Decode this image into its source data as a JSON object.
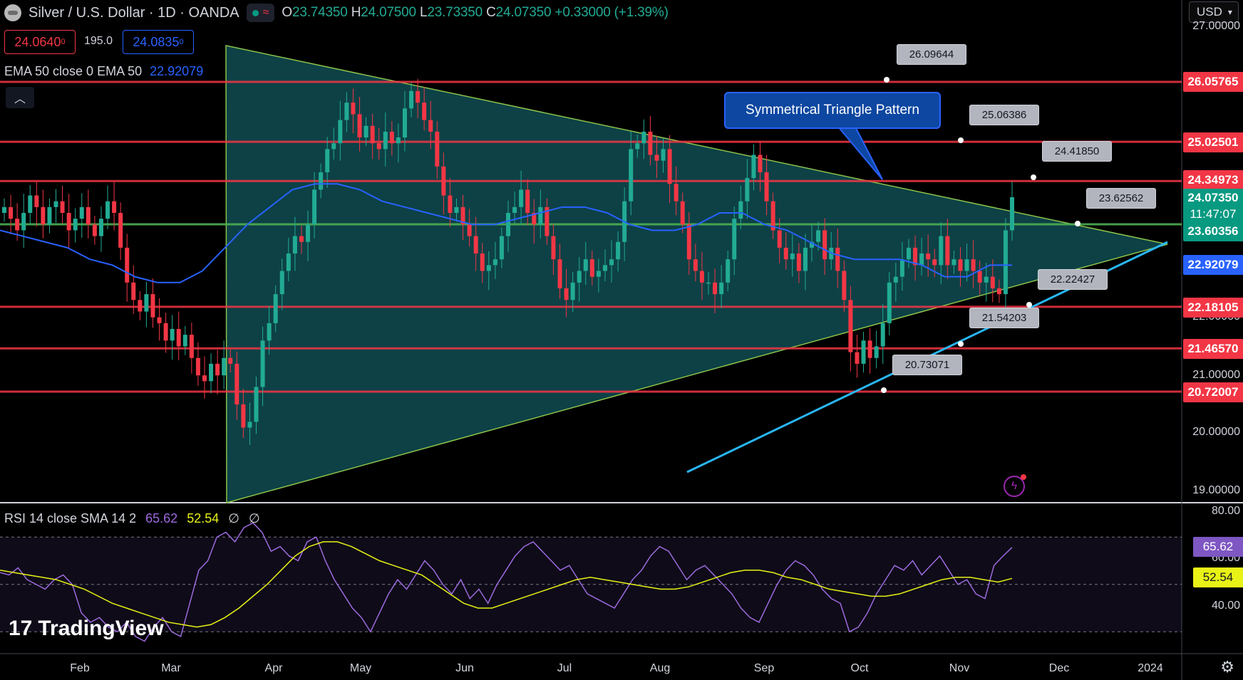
{
  "header": {
    "symbol_title": "Silver / U.S. Dollar · 1D · OANDA",
    "open_key": "O",
    "open": "23.74350",
    "high_key": "H",
    "high": "24.07500",
    "low_key": "L",
    "low": "23.73350",
    "close_key": "C",
    "close": "24.07350",
    "change": "+0.33000 (+1.39%)"
  },
  "trade": {
    "sell_price": "24.0640",
    "sell_sup": "0",
    "spread": "195.0",
    "buy_price": "24.0835",
    "buy_sup": "0"
  },
  "ema": {
    "label": "EMA 50 close 0 EMA 50",
    "value": "22.92079"
  },
  "currency": "USD",
  "price_axis": {
    "ticks": [
      "27.00000",
      "22.00000",
      "21.00000",
      "20.00000",
      "19.00000"
    ],
    "labels": [
      {
        "value": "26.05765",
        "price": 26.05765,
        "color": "#f23645"
      },
      {
        "value": "25.02501",
        "price": 25.02501,
        "color": "#f23645"
      },
      {
        "value": "24.34973",
        "price": 24.34973,
        "color": "#f23645"
      },
      {
        "value": "24.07350",
        "price": 24.0735,
        "color": "#089981"
      },
      {
        "value": "11:47:07",
        "price": 23.84,
        "color": "#089981"
      },
      {
        "value": "23.60356",
        "price": 23.60356,
        "color": "#089981"
      },
      {
        "value": "22.92079",
        "price": 22.92079,
        "color": "#2962ff"
      },
      {
        "value": "22.18105",
        "price": 22.18105,
        "color": "#f23645"
      },
      {
        "value": "21.46570",
        "price": 21.4657,
        "color": "#f23645"
      },
      {
        "value": "20.72007",
        "price": 20.72007,
        "color": "#f23645"
      }
    ]
  },
  "rsi_axis": {
    "ticks": [
      "80.00",
      "60.00",
      "40.00"
    ],
    "labels": [
      {
        "value": "65.62",
        "level": 65.62,
        "color": "#7e57c2",
        "text_color": "#fff"
      },
      {
        "value": "52.54",
        "level": 52.54,
        "color": "#e8f216",
        "text_color": "#131722"
      }
    ]
  },
  "time_axis": [
    "Feb",
    "Mar",
    "Apr",
    "May",
    "Jun",
    "Jul",
    "Aug",
    "Sep",
    "Oct",
    "Nov",
    "Dec",
    "2024"
  ],
  "callouts": [
    "26.09644",
    "25.06386",
    "24.41850",
    "23.62562",
    "22.22427",
    "21.54203",
    "20.73071"
  ],
  "pattern_label": "Symmetrical Triangle Pattern",
  "rsi": {
    "label": "RSI 14 close SMA 14 2",
    "rsi_value": "65.62",
    "sma_value": "52.54",
    "extra1": "∅",
    "extra2": "∅"
  },
  "logo": "TradingView",
  "colors": {
    "up": "#22ab94",
    "down": "#f23645",
    "ema": "#2962ff",
    "triangle": "#0f4c52",
    "rsi": "#9c6ade",
    "rsi_sma": "#e8f216"
  },
  "chart_data": {
    "type": "candlestick",
    "title": "Silver / U.S. Dollar · 1D · OANDA",
    "x_labels": [
      "Feb",
      "Mar",
      "Apr",
      "May",
      "Jun",
      "Jul",
      "Aug",
      "Sep",
      "Oct",
      "Nov",
      "Dec",
      "2024"
    ],
    "y_range": [
      18.8,
      27.3
    ],
    "horizontal_levels": [
      26.05765,
      25.02501,
      24.34973,
      23.60356,
      22.18105,
      21.4657,
      20.72007
    ],
    "close_path": [
      23.9,
      23.7,
      23.5,
      23.8,
      24.1,
      23.9,
      23.6,
      23.9,
      24.0,
      23.8,
      23.5,
      23.7,
      23.9,
      23.6,
      23.4,
      23.7,
      24.0,
      23.8,
      23.2,
      22.6,
      22.3,
      22.1,
      22.4,
      22.0,
      21.9,
      21.6,
      21.8,
      21.5,
      21.7,
      21.3,
      21.0,
      20.9,
      21.2,
      21.0,
      21.3,
      21.2,
      20.5,
      20.1,
      20.2,
      20.8,
      21.6,
      21.9,
      22.4,
      22.8,
      23.1,
      23.4,
      23.3,
      23.6,
      24.2,
      24.5,
      24.9,
      25.0,
      25.4,
      25.7,
      25.5,
      25.1,
      25.3,
      25.0,
      24.9,
      25.2,
      25.0,
      25.1,
      25.6,
      25.9,
      25.7,
      25.4,
      25.2,
      24.6,
      24.1,
      23.8,
      23.9,
      23.6,
      23.4,
      23.1,
      22.8,
      22.9,
      23.0,
      23.4,
      23.8,
      23.9,
      24.2,
      23.8,
      23.6,
      23.9,
      23.4,
      23.0,
      22.5,
      22.3,
      22.6,
      22.8,
      23.0,
      22.7,
      22.8,
      22.9,
      23.0,
      23.3,
      24.0,
      24.9,
      25.0,
      25.2,
      24.8,
      24.7,
      24.9,
      24.3,
      24.0,
      23.6,
      23.0,
      22.8,
      22.6,
      22.6,
      22.4,
      22.6,
      23.0,
      23.7,
      24.0,
      24.4,
      24.8,
      24.5,
      24.0,
      23.5,
      23.2,
      23.0,
      23.1,
      22.8,
      23.2,
      23.3,
      23.5,
      23.0,
      23.2,
      22.8,
      22.3,
      21.4,
      21.2,
      21.6,
      21.3,
      21.5,
      21.9,
      22.6,
      22.7,
      23.0,
      23.2,
      22.9,
      23.1,
      23.0,
      22.9,
      23.4,
      22.9,
      23.0,
      22.8,
      23.0,
      22.8,
      22.6,
      22.7,
      22.5,
      22.4,
      23.5,
      24.07
    ],
    "ema50_path": [
      23.5,
      23.4,
      23.3,
      23.2,
      23.0,
      22.9,
      22.7,
      22.6,
      22.6,
      22.8,
      23.2,
      23.6,
      23.9,
      24.2,
      24.3,
      24.3,
      24.2,
      24.0,
      23.9,
      23.8,
      23.7,
      23.6,
      23.6,
      23.7,
      23.8,
      23.9,
      23.9,
      23.8,
      23.6,
      23.5,
      23.5,
      23.6,
      23.8,
      23.8,
      23.6,
      23.5,
      23.3,
      23.1,
      23.0,
      23.0,
      23.0,
      22.9,
      22.7,
      22.7,
      22.9,
      22.9
    ],
    "rsi_path": [
      55,
      54,
      57,
      52,
      50,
      48,
      52,
      54,
      50,
      38,
      34,
      36,
      32,
      30,
      34,
      28,
      26,
      32,
      36,
      30,
      28,
      42,
      56,
      60,
      70,
      72,
      68,
      74,
      76,
      72,
      64,
      66,
      62,
      60,
      68,
      70,
      60,
      52,
      46,
      40,
      36,
      30,
      38,
      46,
      52,
      48,
      54,
      60,
      56,
      50,
      46,
      52,
      44,
      48,
      42,
      50,
      56,
      62,
      66,
      68,
      64,
      60,
      56,
      58,
      52,
      46,
      44,
      42,
      40,
      46,
      52,
      56,
      62,
      66,
      64,
      58,
      52,
      56,
      58,
      54,
      50,
      46,
      40,
      36,
      34,
      42,
      50,
      56,
      60,
      58,
      54,
      48,
      44,
      42,
      30,
      32,
      38,
      46,
      52,
      58,
      56,
      60,
      54,
      58,
      62,
      56,
      50,
      52,
      46,
      44,
      58,
      62,
      65.62
    ],
    "rsi_sma_path": [
      56,
      55,
      54,
      53,
      52,
      50,
      48,
      45,
      42,
      40,
      38,
      36,
      34,
      33,
      32,
      33,
      36,
      40,
      45,
      50,
      56,
      62,
      66,
      68,
      68,
      66,
      63,
      60,
      58,
      56,
      54,
      50,
      46,
      42,
      40,
      40,
      42,
      44,
      46,
      48,
      50,
      52,
      53,
      52,
      51,
      50,
      49,
      48,
      48,
      49,
      51,
      53,
      55,
      56,
      56,
      55,
      53,
      52,
      50,
      48,
      47,
      46,
      45,
      45,
      46,
      48,
      50,
      52,
      53,
      53,
      52,
      51,
      52.54
    ]
  }
}
